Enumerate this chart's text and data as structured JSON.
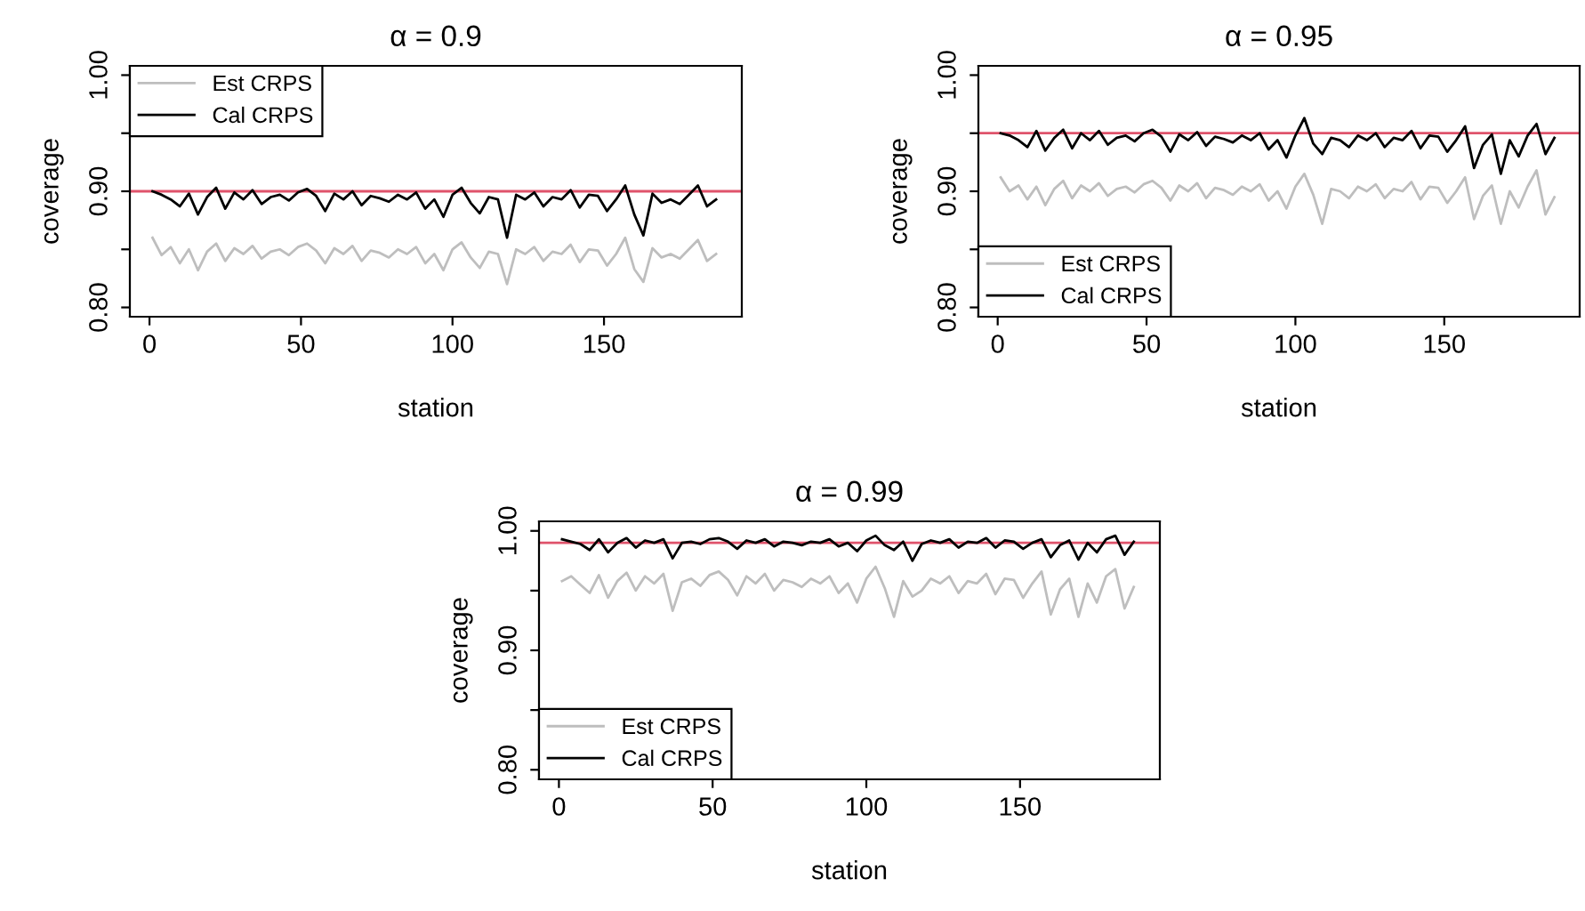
{
  "chart_data": [
    {
      "type": "line",
      "title": "α = 0.9",
      "xlabel": "station",
      "ylabel": "coverage",
      "xlim": [
        -6.48,
        195.48
      ],
      "ylim": [
        0.792,
        1.008
      ],
      "xticks": [
        0,
        50,
        100,
        150
      ],
      "yticks": [
        {
          "value": 0.8,
          "label": "0.80"
        },
        {
          "value": 0.85,
          "label": null
        },
        {
          "value": 0.9,
          "label": "0.90"
        },
        {
          "value": 0.95,
          "label": null
        },
        {
          "value": 1.0,
          "label": "1.00"
        }
      ],
      "grid": false,
      "legend": "top left",
      "line_style": "solid",
      "marker": "none",
      "x": [
        1,
        4,
        7,
        10,
        13,
        16,
        19,
        22,
        25,
        28,
        31,
        34,
        37,
        40,
        43,
        46,
        49,
        52,
        55,
        58,
        61,
        64,
        67,
        70,
        73,
        76,
        79,
        82,
        85,
        88,
        91,
        94,
        97,
        100,
        103,
        106,
        109,
        112,
        115,
        118,
        121,
        124,
        127,
        130,
        133,
        136,
        139,
        142,
        145,
        148,
        151,
        154,
        157,
        160,
        163,
        166,
        169,
        172,
        175,
        178,
        181,
        184,
        187
      ],
      "series": [
        {
          "name": "Est CRPS",
          "color": "#bebebe",
          "values": [
            0.86,
            0.845,
            0.852,
            0.838,
            0.85,
            0.832,
            0.848,
            0.855,
            0.84,
            0.851,
            0.846,
            0.853,
            0.842,
            0.848,
            0.85,
            0.845,
            0.852,
            0.855,
            0.849,
            0.838,
            0.851,
            0.846,
            0.853,
            0.84,
            0.849,
            0.847,
            0.843,
            0.85,
            0.846,
            0.852,
            0.838,
            0.846,
            0.832,
            0.85,
            0.856,
            0.843,
            0.834,
            0.848,
            0.846,
            0.82,
            0.85,
            0.846,
            0.852,
            0.84,
            0.848,
            0.846,
            0.854,
            0.839,
            0.85,
            0.849,
            0.836,
            0.846,
            0.86,
            0.833,
            0.822,
            0.851,
            0.843,
            0.846,
            0.842,
            0.85,
            0.858,
            0.84,
            0.846
          ]
        },
        {
          "name": "Cal CRPS",
          "color": "#000000",
          "values": [
            0.9,
            0.897,
            0.893,
            0.887,
            0.898,
            0.88,
            0.895,
            0.903,
            0.885,
            0.899,
            0.893,
            0.901,
            0.889,
            0.895,
            0.897,
            0.892,
            0.899,
            0.902,
            0.896,
            0.883,
            0.898,
            0.893,
            0.9,
            0.888,
            0.896,
            0.894,
            0.891,
            0.897,
            0.893,
            0.899,
            0.885,
            0.893,
            0.878,
            0.897,
            0.903,
            0.89,
            0.881,
            0.895,
            0.893,
            0.86,
            0.897,
            0.893,
            0.899,
            0.887,
            0.895,
            0.893,
            0.901,
            0.886,
            0.897,
            0.896,
            0.883,
            0.893,
            0.905,
            0.88,
            0.862,
            0.898,
            0.89,
            0.893,
            0.889,
            0.897,
            0.905,
            0.887,
            0.893
          ]
        }
      ],
      "ref_lines": [
        {
          "axis": "y",
          "value": 0.9,
          "color": "#df536b"
        }
      ]
    },
    {
      "type": "line",
      "title": "α = 0.95",
      "xlabel": "station",
      "ylabel": "coverage",
      "xlim": [
        -6.48,
        195.48
      ],
      "ylim": [
        0.792,
        1.008
      ],
      "xticks": [
        0,
        50,
        100,
        150
      ],
      "yticks": [
        {
          "value": 0.8,
          "label": "0.80"
        },
        {
          "value": 0.85,
          "label": null
        },
        {
          "value": 0.9,
          "label": "0.90"
        },
        {
          "value": 0.95,
          "label": null
        },
        {
          "value": 1.0,
          "label": "1.00"
        }
      ],
      "grid": false,
      "legend": "bottom left",
      "line_style": "solid",
      "marker": "none",
      "x": [
        1,
        4,
        7,
        10,
        13,
        16,
        19,
        22,
        25,
        28,
        31,
        34,
        37,
        40,
        43,
        46,
        49,
        52,
        55,
        58,
        61,
        64,
        67,
        70,
        73,
        76,
        79,
        82,
        85,
        88,
        91,
        94,
        97,
        100,
        103,
        106,
        109,
        112,
        115,
        118,
        121,
        124,
        127,
        130,
        133,
        136,
        139,
        142,
        145,
        148,
        151,
        154,
        157,
        160,
        163,
        166,
        169,
        172,
        175,
        178,
        181,
        184,
        187
      ],
      "series": [
        {
          "name": "Est CRPS",
          "color": "#bebebe",
          "values": [
            0.912,
            0.9,
            0.905,
            0.893,
            0.904,
            0.888,
            0.902,
            0.909,
            0.894,
            0.905,
            0.9,
            0.907,
            0.896,
            0.902,
            0.904,
            0.899,
            0.906,
            0.909,
            0.903,
            0.892,
            0.905,
            0.9,
            0.907,
            0.894,
            0.903,
            0.901,
            0.897,
            0.904,
            0.9,
            0.906,
            0.892,
            0.9,
            0.885,
            0.904,
            0.915,
            0.897,
            0.872,
            0.902,
            0.9,
            0.894,
            0.904,
            0.9,
            0.906,
            0.894,
            0.902,
            0.9,
            0.908,
            0.893,
            0.904,
            0.903,
            0.89,
            0.9,
            0.912,
            0.876,
            0.896,
            0.905,
            0.872,
            0.9,
            0.886,
            0.904,
            0.918,
            0.88,
            0.895
          ]
        },
        {
          "name": "Cal CRPS",
          "color": "#000000",
          "values": [
            0.95,
            0.948,
            0.944,
            0.938,
            0.952,
            0.935,
            0.946,
            0.953,
            0.937,
            0.95,
            0.944,
            0.952,
            0.94,
            0.946,
            0.948,
            0.943,
            0.95,
            0.953,
            0.947,
            0.934,
            0.949,
            0.944,
            0.951,
            0.939,
            0.947,
            0.945,
            0.942,
            0.948,
            0.944,
            0.95,
            0.936,
            0.944,
            0.929,
            0.948,
            0.963,
            0.941,
            0.932,
            0.946,
            0.944,
            0.938,
            0.948,
            0.944,
            0.95,
            0.938,
            0.946,
            0.944,
            0.952,
            0.937,
            0.948,
            0.947,
            0.934,
            0.944,
            0.956,
            0.92,
            0.94,
            0.949,
            0.915,
            0.944,
            0.93,
            0.948,
            0.958,
            0.932,
            0.946
          ]
        }
      ],
      "ref_lines": [
        {
          "axis": "y",
          "value": 0.95,
          "color": "#df536b"
        }
      ]
    },
    {
      "type": "line",
      "title": "α = 0.99",
      "xlabel": "station",
      "ylabel": "coverage",
      "xlim": [
        -6.48,
        195.48
      ],
      "ylim": [
        0.792,
        1.008
      ],
      "xticks": [
        0,
        50,
        100,
        150
      ],
      "yticks": [
        {
          "value": 0.8,
          "label": "0.80"
        },
        {
          "value": 0.85,
          "label": null
        },
        {
          "value": 0.9,
          "label": "0.90"
        },
        {
          "value": 0.95,
          "label": null
        },
        {
          "value": 1.0,
          "label": "1.00"
        }
      ],
      "grid": false,
      "legend": "bottom left",
      "line_style": "solid",
      "marker": "none",
      "x": [
        1,
        4,
        7,
        10,
        13,
        16,
        19,
        22,
        25,
        28,
        31,
        34,
        37,
        40,
        43,
        46,
        49,
        52,
        55,
        58,
        61,
        64,
        67,
        70,
        73,
        76,
        79,
        82,
        85,
        88,
        91,
        94,
        97,
        100,
        103,
        106,
        109,
        112,
        115,
        118,
        121,
        124,
        127,
        130,
        133,
        136,
        139,
        142,
        145,
        148,
        151,
        154,
        157,
        160,
        163,
        166,
        169,
        172,
        175,
        178,
        181,
        184,
        187
      ],
      "series": [
        {
          "name": "Est CRPS",
          "color": "#bebebe",
          "values": [
            0.958,
            0.962,
            0.955,
            0.948,
            0.963,
            0.944,
            0.958,
            0.965,
            0.95,
            0.962,
            0.956,
            0.964,
            0.933,
            0.957,
            0.96,
            0.954,
            0.963,
            0.966,
            0.959,
            0.946,
            0.962,
            0.956,
            0.964,
            0.95,
            0.959,
            0.957,
            0.953,
            0.96,
            0.956,
            0.962,
            0.948,
            0.956,
            0.94,
            0.96,
            0.97,
            0.952,
            0.928,
            0.958,
            0.945,
            0.95,
            0.96,
            0.956,
            0.962,
            0.948,
            0.958,
            0.956,
            0.964,
            0.947,
            0.96,
            0.959,
            0.944,
            0.956,
            0.966,
            0.93,
            0.951,
            0.96,
            0.928,
            0.956,
            0.94,
            0.962,
            0.968,
            0.935,
            0.953
          ]
        },
        {
          "name": "Cal CRPS",
          "color": "#000000",
          "values": [
            0.993,
            0.991,
            0.989,
            0.984,
            0.993,
            0.982,
            0.99,
            0.994,
            0.986,
            0.992,
            0.99,
            0.993,
            0.977,
            0.99,
            0.991,
            0.989,
            0.993,
            0.994,
            0.991,
            0.985,
            0.992,
            0.99,
            0.993,
            0.987,
            0.991,
            0.99,
            0.988,
            0.991,
            0.99,
            0.993,
            0.987,
            0.99,
            0.983,
            0.992,
            0.996,
            0.988,
            0.984,
            0.991,
            0.975,
            0.989,
            0.992,
            0.99,
            0.993,
            0.986,
            0.991,
            0.99,
            0.994,
            0.986,
            0.992,
            0.991,
            0.985,
            0.99,
            0.993,
            0.978,
            0.988,
            0.992,
            0.976,
            0.99,
            0.982,
            0.993,
            0.996,
            0.98,
            0.991
          ]
        }
      ],
      "ref_lines": [
        {
          "axis": "y",
          "value": 0.99,
          "color": "#df536b"
        }
      ]
    }
  ]
}
